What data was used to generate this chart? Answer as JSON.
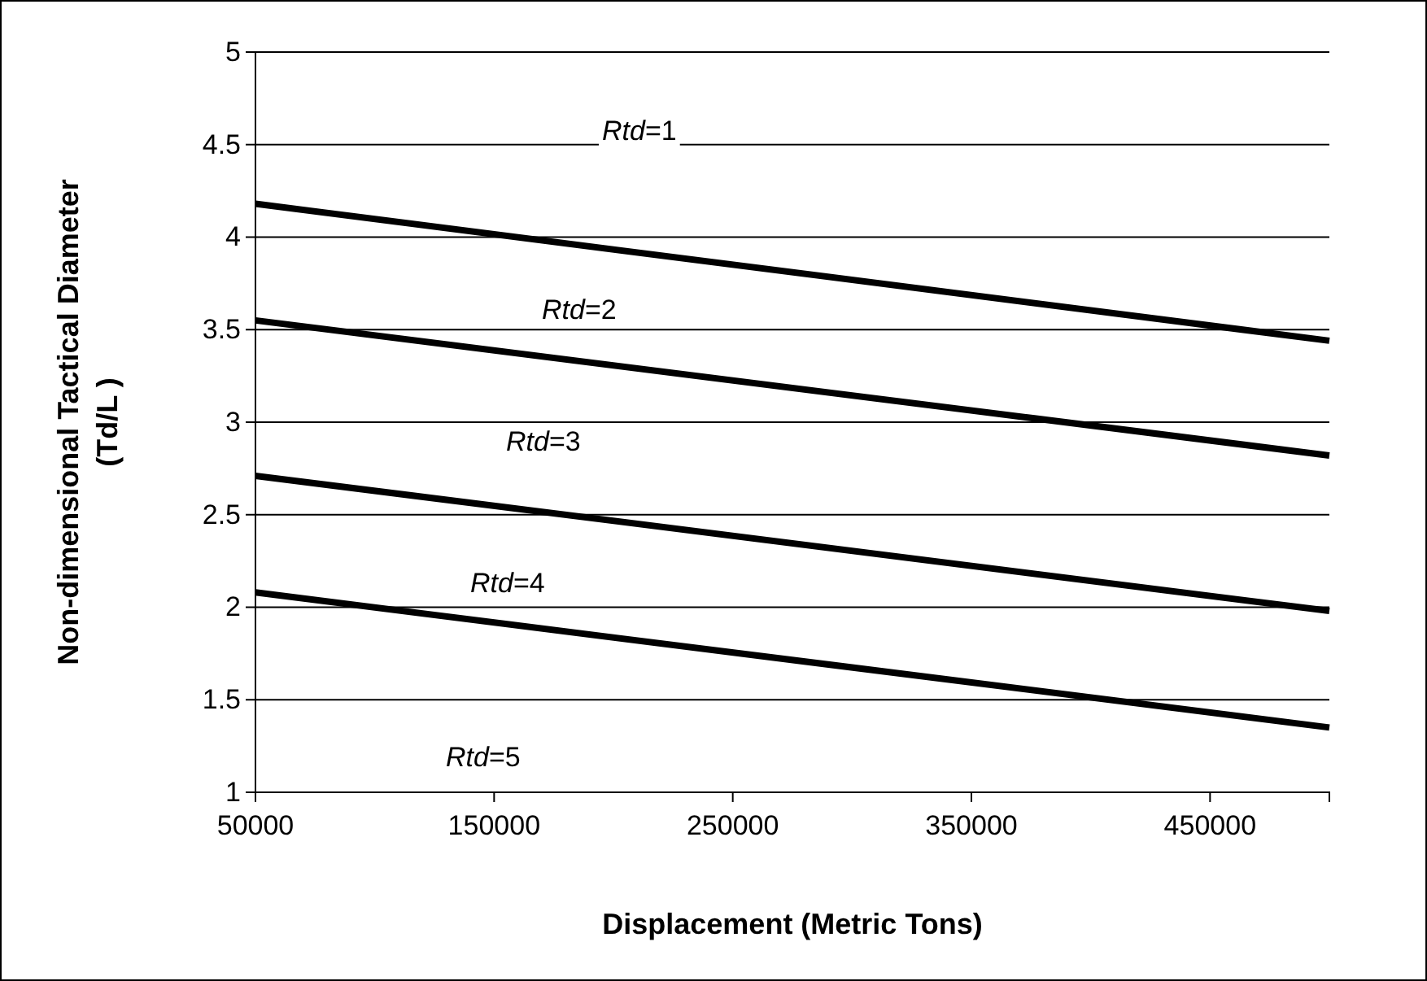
{
  "chart_data": {
    "type": "line",
    "xlabel": "Displacement (Metric Tons)",
    "ylabel": "Non-dimensional Tactical Diameter (Td/L )",
    "x": [
      50000,
      500000
    ],
    "series": [
      {
        "color": "#000000",
        "values": [
          4.18,
          3.44
        ]
      },
      {
        "color": "#000000",
        "values": [
          3.55,
          2.82
        ]
      },
      {
        "color": "#000000",
        "values": [
          2.71,
          1.98
        ]
      },
      {
        "color": "#000000",
        "values": [
          2.08,
          1.35
        ]
      }
    ],
    "xlim": [
      50000,
      500000
    ],
    "xticks": [
      50000,
      150000,
      250000,
      350000,
      450000
    ],
    "ylim": [
      1,
      5
    ],
    "yticks": [
      1,
      1.5,
      2,
      2.5,
      3,
      3.5,
      4,
      4.5,
      5
    ],
    "grid": "y",
    "marker": "none",
    "line_style": "solid",
    "annotations": [
      "Rtd=1",
      "Rtd=2",
      "Rtd=3",
      "Rtd=4",
      "Rtd=5"
    ]
  }
}
